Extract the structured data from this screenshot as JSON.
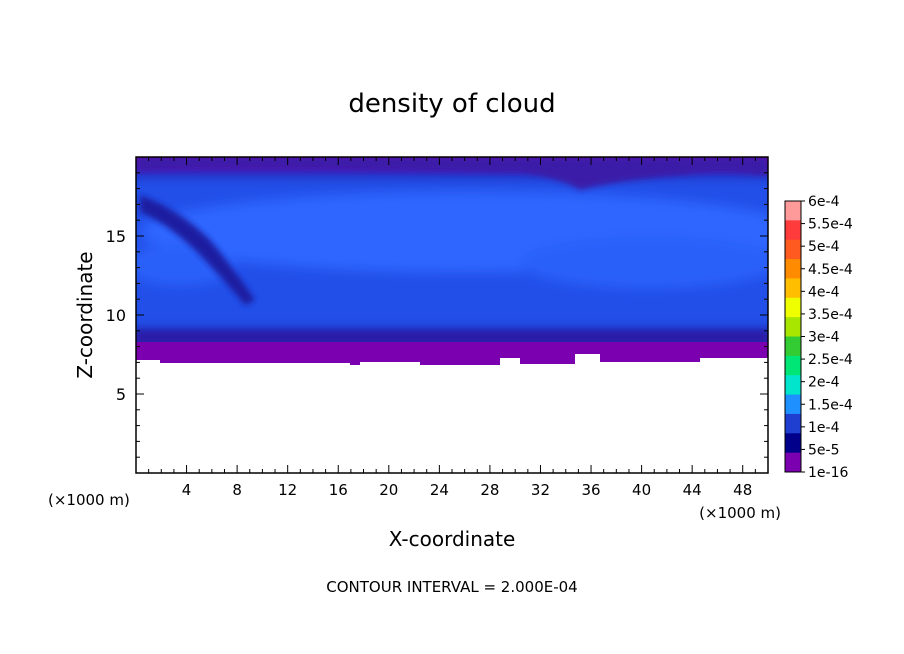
{
  "chart_data": {
    "type": "heatmap",
    "title": "density of cloud",
    "xlabel": "X-coordinate",
    "ylabel": "Z-coordinate",
    "x_unit_left": "(×1000 m)",
    "x_unit_right": "(×1000 m)",
    "footer": "CONTOUR INTERVAL = 2.000E-04",
    "xlim": [
      0,
      50
    ],
    "ylim": [
      0,
      20
    ],
    "x_ticks": [
      4,
      8,
      12,
      16,
      20,
      24,
      28,
      32,
      36,
      40,
      44,
      48
    ],
    "y_ticks": [
      5,
      10,
      15
    ],
    "cloud_base_km": 7,
    "cloud_top_km": 20,
    "field_description_visible": "blue values ~1e-4 to 1.5e-4 between z=8 and z=19 km; purple edges near base (~7-8 km) and top; dark streak from x~0 z~17 to x~9 z~11",
    "colorbar": {
      "labels": [
        "6e-4",
        "5.5e-4",
        "5e-4",
        "4.5e-4",
        "4e-4",
        "3.5e-4",
        "3e-4",
        "2.5e-4",
        "2e-4",
        "1.5e-4",
        "1e-4",
        "5e-5",
        "1e-16"
      ],
      "colors": [
        "#ff9a9a",
        "#ff3b3b",
        "#ff5a1f",
        "#ff8c00",
        "#ffbf00",
        "#f0ff00",
        "#a8e600",
        "#33cc33",
        "#00e676",
        "#00e5cc",
        "#1e90ff",
        "#1f3fd0",
        "#00008b",
        "#7a00b0"
      ]
    }
  }
}
